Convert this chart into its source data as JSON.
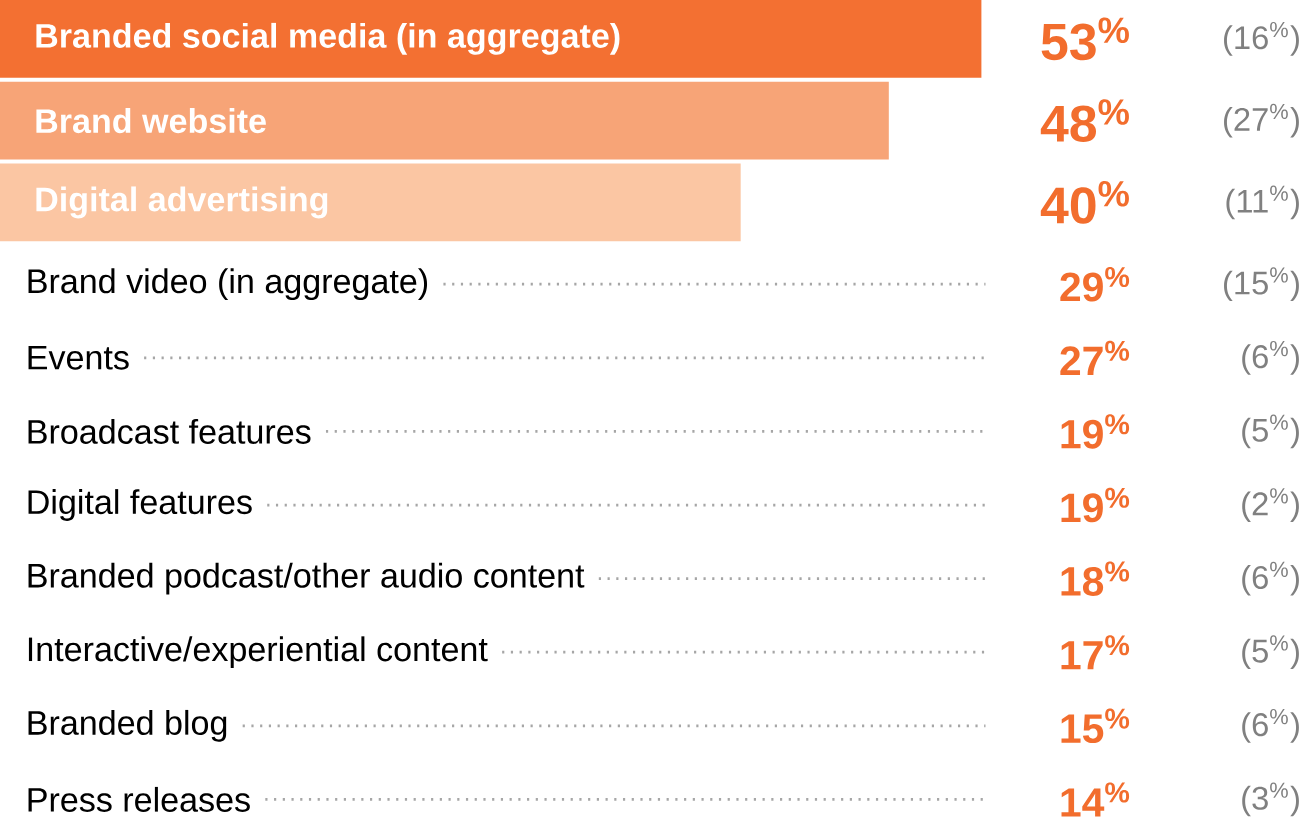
{
  "chart_data": {
    "type": "other",
    "categories": [
      "Branded social media (in aggregate)",
      "Brand website",
      "Digital advertising",
      "Brand video (in aggregate)",
      "Events",
      "Broadcast features",
      "Digital features",
      "Branded podcast/other audio content",
      "Interactive/experiential content",
      "Branded blog",
      "Press releases"
    ],
    "series": [
      {
        "color": "#f26d2d",
        "values": [
          53,
          48,
          40,
          29,
          27,
          19,
          19,
          18,
          17,
          15,
          14
        ],
        "value_labels": [
          "53$^{%}$",
          "48$^{%}$",
          "40$^{%}$",
          "29$^{%}$",
          "27$^{%}$",
          "19$^{%}$",
          "19$^{%}$",
          "18$^{%}$",
          "17$^{%}$",
          "15$^{%}$",
          "14$^{%}$"
        ],
        "colors": [
          "#f37032",
          "#f7a477",
          "#fbc6a3",
          null,
          null,
          null,
          null,
          null,
          null,
          null,
          null
        ]
      },
      {
        "color": "#808080",
        "values": [
          16,
          27,
          11,
          15,
          6,
          5,
          2,
          6,
          5,
          6,
          3
        ],
        "value_labels": [
          "(16$^{%}$)",
          "(27$^{%}$)",
          "(11$^{%}$)",
          "(15$^{%}$)",
          "(6$^{%}$)",
          "(5$^{%}$)",
          "(2$^{%}$)",
          "(6$^{%}$)",
          "(5$^{%}$)",
          "(6$^{%}$)",
          "(3$^{%}$)"
        ]
      }
    ]
  }
}
